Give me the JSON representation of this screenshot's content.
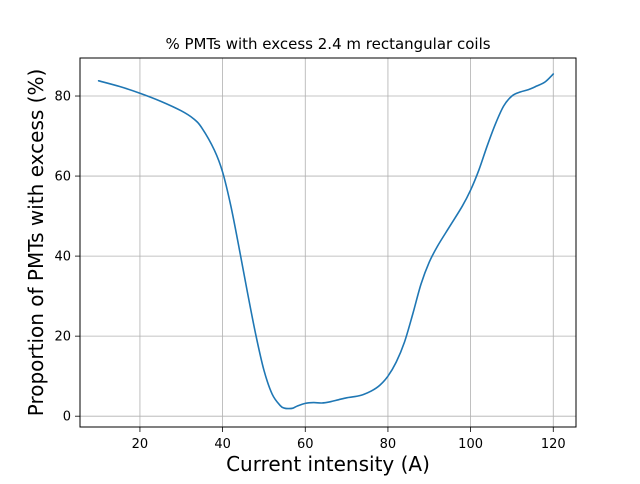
{
  "chart_data": {
    "type": "line",
    "title": "% PMTs with excess 2.4 m rectangular coils",
    "xlabel": "Current intensity (A)",
    "ylabel": "Proportion of PMTs with excess (%)",
    "xlim": [
      5.5,
      125.5
    ],
    "ylim": [
      -2.7,
      89.5
    ],
    "xticks": [
      20,
      40,
      60,
      80,
      100,
      120
    ],
    "yticks": [
      0,
      20,
      40,
      60,
      80
    ],
    "grid": true,
    "legend": "none",
    "colors": {
      "line": "#1f77b4",
      "grid": "#b0b0b0"
    },
    "series": [
      {
        "x": [
          10,
          15,
          20,
          25,
          30,
          33,
          35,
          38,
          40,
          42,
          44,
          46,
          48,
          50,
          52,
          54,
          55,
          56,
          57,
          58,
          60,
          62,
          64,
          66,
          68,
          70,
          72,
          74,
          76,
          78,
          80,
          82,
          84,
          86,
          88,
          90,
          92,
          95,
          98,
          100,
          102,
          104,
          106,
          108,
          110,
          112,
          114,
          116,
          118,
          120
        ],
        "y": [
          83.8,
          82.4,
          80.7,
          78.7,
          76.3,
          74.3,
          72.0,
          66.5,
          61.0,
          52.5,
          42.0,
          31.0,
          20.5,
          11.5,
          5.5,
          2.6,
          2.0,
          1.9,
          2.0,
          2.5,
          3.2,
          3.4,
          3.3,
          3.6,
          4.1,
          4.6,
          4.9,
          5.4,
          6.3,
          7.7,
          10.0,
          13.5,
          18.5,
          25.5,
          33.0,
          38.5,
          42.5,
          47.5,
          52.5,
          56.5,
          61.5,
          67.5,
          73.0,
          77.5,
          80.0,
          81.0,
          81.6,
          82.5,
          83.5,
          85.5
        ]
      }
    ]
  }
}
